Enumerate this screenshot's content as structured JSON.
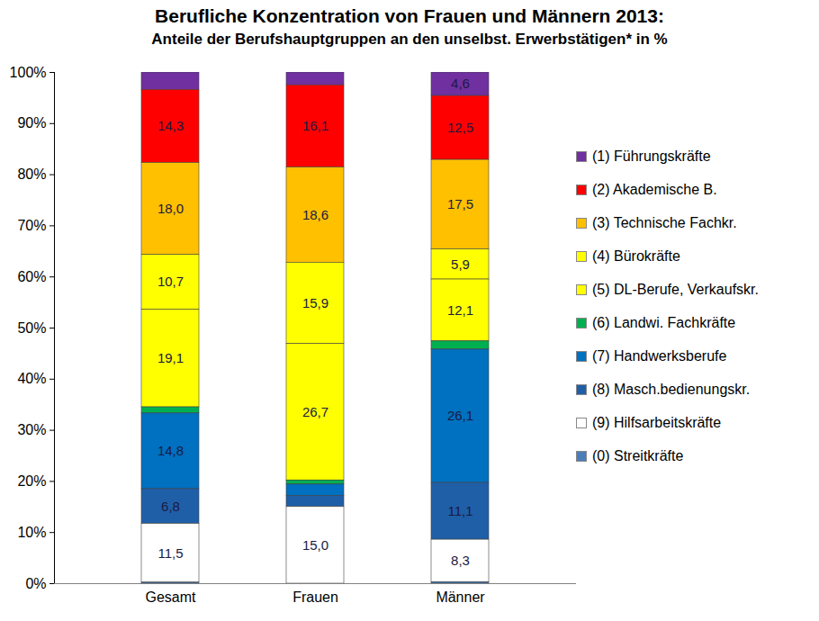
{
  "chart_data": {
    "type": "bar",
    "title": "Berufliche Konzentration von Frauen und Männern 2013:",
    "subtitle": "Anteile der Berufshauptgruppen an den unselbst. Erwerbstätigen* in %",
    "categories": [
      "Gesamt",
      "Frauen",
      "Männer"
    ],
    "stacked": true,
    "data_labels": true,
    "grid": false,
    "legend": "right",
    "ylim": [
      0,
      100
    ],
    "yticks": [
      {
        "value": 0,
        "label": "0%"
      },
      {
        "value": 10,
        "label": "10%"
      },
      {
        "value": 20,
        "label": "20%"
      },
      {
        "value": 30,
        "label": "30%"
      },
      {
        "value": 40,
        "label": "40%"
      },
      {
        "value": 50,
        "label": "50%"
      },
      {
        "value": 60,
        "label": "60%"
      },
      {
        "value": 70,
        "label": "70%"
      },
      {
        "value": 80,
        "label": "80%"
      },
      {
        "value": 90,
        "label": "90%"
      },
      {
        "value": 100,
        "label": "100%"
      }
    ],
    "series": [
      {
        "name": "(1) Führungskräfte",
        "color": "#7030a0",
        "values": [
          3.4,
          2.5,
          4.6
        ],
        "value_labels": [
          null,
          null,
          "4,6"
        ]
      },
      {
        "name": "(2) Akademische B.",
        "color": "#ff0000",
        "values": [
          14.3,
          16.1,
          12.5
        ],
        "value_labels": [
          "14,3",
          "16,1",
          "12,5"
        ]
      },
      {
        "name": "(3) Technische Fachkr.",
        "color": "#ffc000",
        "values": [
          18.0,
          18.6,
          17.5
        ],
        "value_labels": [
          "18,0",
          "18,6",
          "17,5"
        ]
      },
      {
        "name": "(4) Bürokräfte",
        "color": "#ffff00",
        "values": [
          10.7,
          15.9,
          5.9
        ],
        "value_labels": [
          "10,7",
          "15,9",
          "5,9"
        ]
      },
      {
        "name": "(5) DL-Berufe, Verkaufskr.",
        "color": "#ffff00",
        "values": [
          19.1,
          26.7,
          12.1
        ],
        "value_labels": [
          "19,1",
          "26,7",
          "12,1"
        ]
      },
      {
        "name": "(6) Landwi. Fachkräfte",
        "color": "#00b050",
        "values": [
          1.2,
          0.8,
          1.6
        ],
        "value_labels": [
          null,
          null,
          null
        ]
      },
      {
        "name": "(7) Handwerksberufe",
        "color": "#0070c0",
        "values": [
          14.8,
          2.2,
          26.1
        ],
        "value_labels": [
          "14,8",
          null,
          "26,1"
        ]
      },
      {
        "name": "(8) Masch.bedienungskr.",
        "color": "#1f5fa8",
        "values": [
          6.8,
          2.2,
          11.1
        ],
        "value_labels": [
          "6,8",
          null,
          "11,1"
        ]
      },
      {
        "name": "(9) Hilfsarbeitskräfte",
        "color": "#ffffff",
        "values": [
          11.5,
          15.0,
          8.3
        ],
        "value_labels": [
          "11,5",
          "15,0",
          "8,3"
        ]
      },
      {
        "name": "(0) Streitkräfte",
        "color": "#4a7ebb",
        "values": [
          0.2,
          0.0,
          0.3
        ],
        "value_labels": [
          null,
          null,
          null
        ]
      }
    ]
  }
}
